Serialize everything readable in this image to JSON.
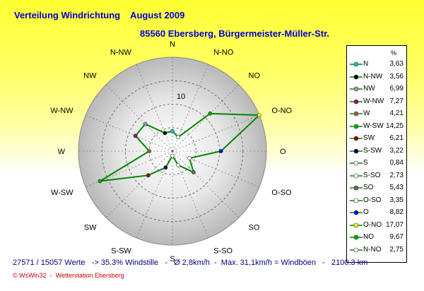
{
  "chart_data": {
    "type": "radar",
    "title": "Verteilung Windrichtung    August 2009",
    "subtitle": "85560 Ebersberg, Bürgermeister-Müller-Str.",
    "directions": [
      "N",
      "N-NO",
      "NO",
      "O-NO",
      "O",
      "O-SO",
      "SO",
      "S-SO",
      "S",
      "S-SW",
      "SW",
      "W-SW",
      "W",
      "W-NW",
      "NW",
      "N-NW"
    ],
    "values": [
      3.63,
      2.75,
      9.67,
      17.07,
      8.82,
      3.35,
      5.43,
      2.73,
      0.84,
      3.22,
      6.21,
      14.25,
      4.21,
      7.27,
      6.99,
      3.56
    ],
    "radial_max": 17.07,
    "radial_tick_label": "10",
    "grid": true,
    "legend_position": "right",
    "legend_header": "%",
    "legend": [
      {
        "label": "N",
        "value": "3,63",
        "color": "#00cccc"
      },
      {
        "label": "N-NW",
        "value": "3,56",
        "color": "#000000"
      },
      {
        "label": "NW",
        "value": "6,99",
        "color": "#999999"
      },
      {
        "label": "W-NW",
        "value": "7,27",
        "color": "#990099"
      },
      {
        "label": "W",
        "value": "4,21",
        "color": "#996633"
      },
      {
        "label": "W-SW",
        "value": "14,25",
        "color": "#00aa00"
      },
      {
        "label": "SW",
        "value": "6,21",
        "color": "#990000"
      },
      {
        "label": "S-SW",
        "value": "3,22",
        "color": "#000066"
      },
      {
        "label": "S",
        "value": "0,84",
        "color": "#ffffff"
      },
      {
        "label": "S-SO",
        "value": "2,73",
        "color": "#ffffff"
      },
      {
        "label": "SO",
        "value": "5,43",
        "color": "#666666"
      },
      {
        "label": "O-SO",
        "value": "3,35",
        "color": "#ffffff"
      },
      {
        "label": "O",
        "value": "8,82",
        "color": "#0000ff"
      },
      {
        "label": "O-NO",
        "value": "17,07",
        "color": "#ffff00"
      },
      {
        "label": "NO",
        "value": "9,67",
        "color": "#00aa00"
      },
      {
        "label": "N-NO",
        "value": "2,75",
        "color": "#ffffff"
      }
    ],
    "line_color": "#008800"
  },
  "footer": "27571 / 15057 Werte   -> 35.3% Windstille   -   Ø 2,8km/h  -  Max. 31,1km/h = Windböen   -   2100.3 km",
  "credit": "© WsWin32  -  Wetterstation Ebersberg"
}
